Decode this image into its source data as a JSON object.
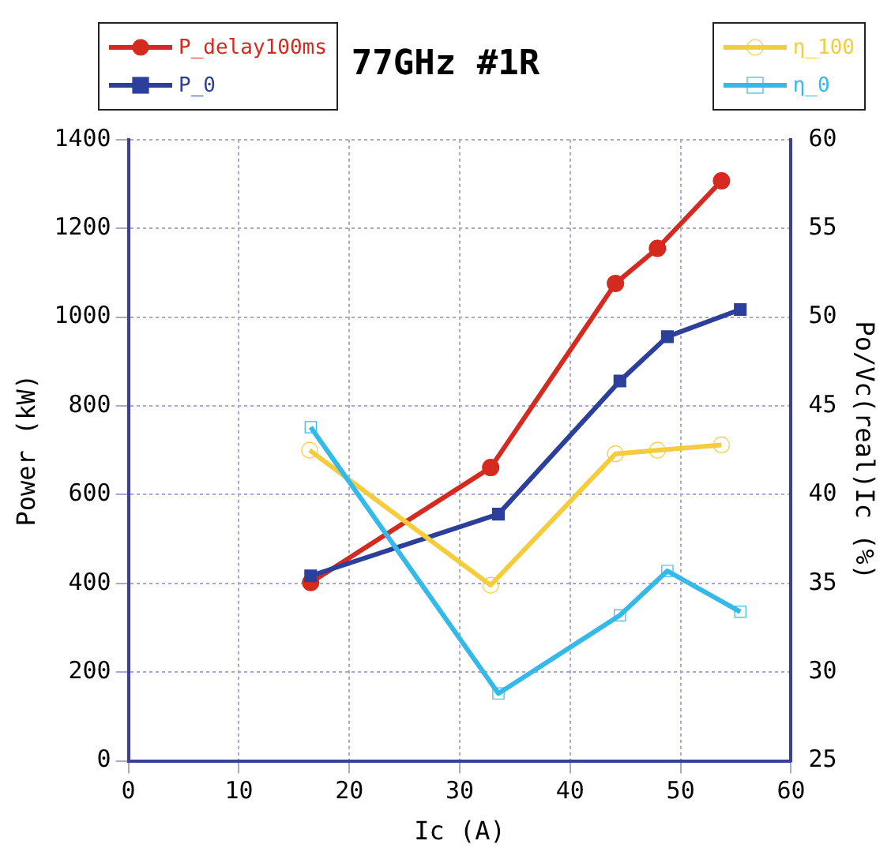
{
  "chart_data": {
    "type": "line",
    "title": "77GHz #1R",
    "xlabel": "Ic (A)",
    "ylabel": "Power (kW)",
    "y2label": "Po/Vc(real)Ic (%)",
    "xlim": [
      0,
      60
    ],
    "xticks": [
      0,
      10,
      20,
      30,
      40,
      50,
      60
    ],
    "ylim": [
      0,
      1400
    ],
    "yticks": [
      0,
      200,
      400,
      600,
      800,
      1000,
      1200,
      1400
    ],
    "y2lim": [
      25,
      60
    ],
    "y2ticks": [
      25,
      30,
      35,
      40,
      45,
      50,
      55,
      60
    ],
    "grid": true,
    "legend": "top",
    "line_style": "solid",
    "series": [
      {
        "name": "P_delay100ms",
        "color": "#d42a20",
        "marker": "circle",
        "x": [
          16.5,
          32.8,
          44.1,
          47.9,
          53.7
        ],
        "values": [
          402,
          661,
          1076,
          1155,
          1307
        ]
      },
      {
        "name": "P_0",
        "color": "#2b3f9b",
        "marker": "square",
        "x": [
          16.5,
          33.5,
          44.5,
          48.8,
          55.4
        ],
        "values": [
          417,
          556,
          856,
          956,
          1017
        ]
      },
      {
        "name": "η_100",
        "color": "#f5cd3c",
        "marker": "circle",
        "axis": "y2",
        "x": [
          16.4,
          32.8,
          44.1,
          47.9,
          53.7
        ],
        "values": [
          42.5,
          34.9,
          42.3,
          42.5,
          42.8
        ]
      },
      {
        "name": "η_0",
        "color": "#35b9e8",
        "marker": "square",
        "axis": "y2",
        "x": [
          16.5,
          33.5,
          44.5,
          48.8,
          55.4
        ],
        "values": [
          43.8,
          28.8,
          33.2,
          35.7,
          33.4
        ]
      }
    ]
  }
}
